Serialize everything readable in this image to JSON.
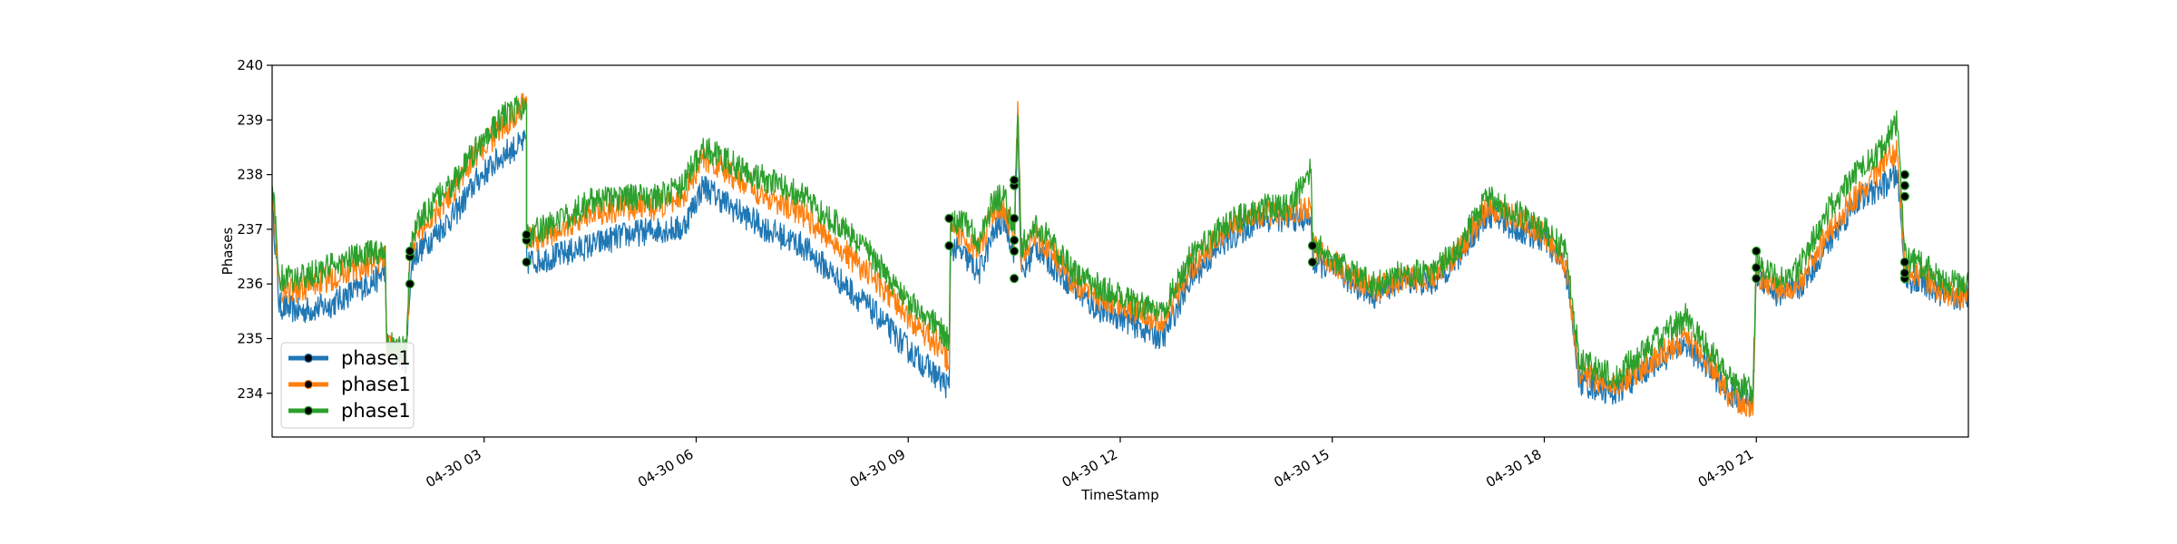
{
  "chart_data": {
    "type": "line",
    "title": "",
    "xlabel": "TimeStamp",
    "ylabel": "Phases",
    "ylim": [
      233.2,
      240.0
    ],
    "xlim_hours": [
      0.0,
      24.0
    ],
    "x_ticks": [
      {
        "hour": 3,
        "label": "04-30 03"
      },
      {
        "hour": 6,
        "label": "04-30 06"
      },
      {
        "hour": 9,
        "label": "04-30 09"
      },
      {
        "hour": 12,
        "label": "04-30 12"
      },
      {
        "hour": 15,
        "label": "04-30 15"
      },
      {
        "hour": 18,
        "label": "04-30 18"
      },
      {
        "hour": 21,
        "label": "04-30 21"
      }
    ],
    "y_ticks": [
      234,
      235,
      236,
      237,
      238,
      239,
      240
    ],
    "legend_position": "lower-left",
    "grid": false,
    "series": [
      {
        "name": "phase1",
        "color": "#1f77b4",
        "points": [
          [
            0,
            237.6
          ],
          [
            0.1,
            235.6
          ],
          [
            0.4,
            235.5
          ],
          [
            0.8,
            235.6
          ],
          [
            1.2,
            235.9
          ],
          [
            1.5,
            236.1
          ],
          [
            1.6,
            236.3
          ],
          [
            1.62,
            234.9
          ],
          [
            1.9,
            234.6
          ],
          [
            1.95,
            236.0
          ],
          [
            2.0,
            236.5
          ],
          [
            2.3,
            236.9
          ],
          [
            2.6,
            237.3
          ],
          [
            2.9,
            237.9
          ],
          [
            3.3,
            238.4
          ],
          [
            3.6,
            238.6
          ],
          [
            3.6,
            236.4
          ],
          [
            4.0,
            236.5
          ],
          [
            4.5,
            236.7
          ],
          [
            5.0,
            236.9
          ],
          [
            5.5,
            237.0
          ],
          [
            5.8,
            237.0
          ],
          [
            6.1,
            237.8
          ],
          [
            6.5,
            237.4
          ],
          [
            7.0,
            237.0
          ],
          [
            7.5,
            236.7
          ],
          [
            8.0,
            236.1
          ],
          [
            8.5,
            235.5
          ],
          [
            9.0,
            234.8
          ],
          [
            9.5,
            234.2
          ],
          [
            9.58,
            234.1
          ],
          [
            9.6,
            236.7
          ],
          [
            9.8,
            236.5
          ],
          [
            10.0,
            236.2
          ],
          [
            10.2,
            236.9
          ],
          [
            10.35,
            237.2
          ],
          [
            10.5,
            236.6
          ],
          [
            10.55,
            239.0
          ],
          [
            10.6,
            236.1
          ],
          [
            10.8,
            236.7
          ],
          [
            11.0,
            236.4
          ],
          [
            11.3,
            236.0
          ],
          [
            11.6,
            235.6
          ],
          [
            12.0,
            235.4
          ],
          [
            12.3,
            235.2
          ],
          [
            12.6,
            235.0
          ],
          [
            13.0,
            236.1
          ],
          [
            13.5,
            236.8
          ],
          [
            14.0,
            237.2
          ],
          [
            14.4,
            237.2
          ],
          [
            14.7,
            237.2
          ],
          [
            14.72,
            236.4
          ],
          [
            15.0,
            236.3
          ],
          [
            15.3,
            236.0
          ],
          [
            15.6,
            235.8
          ],
          [
            16.0,
            236.1
          ],
          [
            16.4,
            236.0
          ],
          [
            16.8,
            236.5
          ],
          [
            17.2,
            237.3
          ],
          [
            17.6,
            237.0
          ],
          [
            18.0,
            236.8
          ],
          [
            18.3,
            236.3
          ],
          [
            18.5,
            234.2
          ],
          [
            19.0,
            234.0
          ],
          [
            19.5,
            234.5
          ],
          [
            20.0,
            234.9
          ],
          [
            20.3,
            234.5
          ],
          [
            20.6,
            234.0
          ],
          [
            20.95,
            233.8
          ],
          [
            21.0,
            236.2
          ],
          [
            21.3,
            235.8
          ],
          [
            21.6,
            235.9
          ],
          [
            22.0,
            236.7
          ],
          [
            22.4,
            237.5
          ],
          [
            22.8,
            237.8
          ],
          [
            23.0,
            238.0
          ],
          [
            23.1,
            236.1
          ],
          [
            23.4,
            236.0
          ],
          [
            23.7,
            235.7
          ],
          [
            24.0,
            235.8
          ]
        ]
      },
      {
        "name": "phase1",
        "color": "#ff7f0e",
        "points": [
          [
            0,
            237.9
          ],
          [
            0.1,
            235.9
          ],
          [
            0.4,
            235.9
          ],
          [
            0.8,
            236.1
          ],
          [
            1.2,
            236.3
          ],
          [
            1.5,
            236.4
          ],
          [
            1.6,
            236.5
          ],
          [
            1.62,
            234.9
          ],
          [
            1.9,
            234.7
          ],
          [
            1.95,
            236.5
          ],
          [
            2.0,
            236.8
          ],
          [
            2.3,
            237.3
          ],
          [
            2.6,
            237.8
          ],
          [
            2.9,
            238.4
          ],
          [
            3.3,
            238.9
          ],
          [
            3.6,
            239.4
          ],
          [
            3.6,
            236.8
          ],
          [
            4.0,
            236.9
          ],
          [
            4.5,
            237.3
          ],
          [
            5.0,
            237.4
          ],
          [
            5.5,
            237.4
          ],
          [
            5.8,
            237.6
          ],
          [
            6.1,
            238.3
          ],
          [
            6.5,
            238.0
          ],
          [
            7.0,
            237.6
          ],
          [
            7.5,
            237.3
          ],
          [
            8.0,
            236.7
          ],
          [
            8.5,
            236.1
          ],
          [
            9.0,
            235.4
          ],
          [
            9.5,
            234.8
          ],
          [
            9.58,
            234.5
          ],
          [
            9.6,
            237.0
          ],
          [
            9.8,
            236.9
          ],
          [
            10.0,
            236.6
          ],
          [
            10.2,
            237.3
          ],
          [
            10.35,
            237.4
          ],
          [
            10.5,
            236.9
          ],
          [
            10.55,
            239.3
          ],
          [
            10.6,
            236.5
          ],
          [
            10.8,
            236.9
          ],
          [
            11.0,
            236.6
          ],
          [
            11.3,
            236.1
          ],
          [
            11.6,
            235.8
          ],
          [
            12.0,
            235.6
          ],
          [
            12.3,
            235.5
          ],
          [
            12.6,
            235.3
          ],
          [
            13.0,
            236.3
          ],
          [
            13.5,
            237.0
          ],
          [
            14.0,
            237.3
          ],
          [
            14.4,
            237.3
          ],
          [
            14.7,
            237.4
          ],
          [
            14.72,
            236.7
          ],
          [
            15.0,
            236.4
          ],
          [
            15.3,
            236.1
          ],
          [
            15.6,
            235.9
          ],
          [
            16.0,
            236.1
          ],
          [
            16.4,
            236.1
          ],
          [
            16.8,
            236.6
          ],
          [
            17.2,
            237.4
          ],
          [
            17.6,
            237.2
          ],
          [
            18.0,
            236.9
          ],
          [
            18.3,
            236.4
          ],
          [
            18.5,
            234.4
          ],
          [
            19.0,
            234.1
          ],
          [
            19.5,
            234.6
          ],
          [
            20.0,
            235.0
          ],
          [
            20.3,
            234.6
          ],
          [
            20.6,
            234.0
          ],
          [
            20.95,
            233.7
          ],
          [
            21.0,
            236.2
          ],
          [
            21.3,
            235.9
          ],
          [
            21.6,
            236.0
          ],
          [
            22.0,
            236.9
          ],
          [
            22.4,
            237.6
          ],
          [
            22.8,
            238.2
          ],
          [
            23.0,
            238.5
          ],
          [
            23.1,
            236.3
          ],
          [
            23.4,
            236.1
          ],
          [
            23.7,
            235.8
          ],
          [
            24.0,
            235.8
          ]
        ]
      },
      {
        "name": "phase1",
        "color": "#2ca02c",
        "points": [
          [
            0,
            238.0
          ],
          [
            0.1,
            236.1
          ],
          [
            0.4,
            236.1
          ],
          [
            0.8,
            236.3
          ],
          [
            1.2,
            236.5
          ],
          [
            1.5,
            236.6
          ],
          [
            1.6,
            236.7
          ],
          [
            1.62,
            234.9
          ],
          [
            1.9,
            234.8
          ],
          [
            1.95,
            236.6
          ],
          [
            2.0,
            237.0
          ],
          [
            2.3,
            237.5
          ],
          [
            2.6,
            237.9
          ],
          [
            2.9,
            238.5
          ],
          [
            3.3,
            239.1
          ],
          [
            3.6,
            239.3
          ],
          [
            3.6,
            236.9
          ],
          [
            4.0,
            237.1
          ],
          [
            4.5,
            237.5
          ],
          [
            5.0,
            237.6
          ],
          [
            5.5,
            237.6
          ],
          [
            5.8,
            237.8
          ],
          [
            6.1,
            238.5
          ],
          [
            6.5,
            238.2
          ],
          [
            7.0,
            237.9
          ],
          [
            7.5,
            237.6
          ],
          [
            8.0,
            237.1
          ],
          [
            8.5,
            236.5
          ],
          [
            9.0,
            235.7
          ],
          [
            9.5,
            235.1
          ],
          [
            9.58,
            234.9
          ],
          [
            9.6,
            237.2
          ],
          [
            9.8,
            237.1
          ],
          [
            10.0,
            236.8
          ],
          [
            10.2,
            237.5
          ],
          [
            10.35,
            237.6
          ],
          [
            10.5,
            237.0
          ],
          [
            10.55,
            239.1
          ],
          [
            10.6,
            236.7
          ],
          [
            10.8,
            237.1
          ],
          [
            11.0,
            236.8
          ],
          [
            11.3,
            236.3
          ],
          [
            11.6,
            236.0
          ],
          [
            12.0,
            235.8
          ],
          [
            12.3,
            235.6
          ],
          [
            12.6,
            235.5
          ],
          [
            13.0,
            236.5
          ],
          [
            13.5,
            237.1
          ],
          [
            14.0,
            237.4
          ],
          [
            14.4,
            237.4
          ],
          [
            14.7,
            238.1
          ],
          [
            14.72,
            236.8
          ],
          [
            15.0,
            236.5
          ],
          [
            15.3,
            236.2
          ],
          [
            15.6,
            236.0
          ],
          [
            16.0,
            236.2
          ],
          [
            16.4,
            236.2
          ],
          [
            16.8,
            236.7
          ],
          [
            17.2,
            237.6
          ],
          [
            17.6,
            237.3
          ],
          [
            18.0,
            237.0
          ],
          [
            18.3,
            236.6
          ],
          [
            18.5,
            234.6
          ],
          [
            19.0,
            234.3
          ],
          [
            19.5,
            234.9
          ],
          [
            20.0,
            235.4
          ],
          [
            20.3,
            234.9
          ],
          [
            20.6,
            234.3
          ],
          [
            20.95,
            234.0
          ],
          [
            21.0,
            236.4
          ],
          [
            21.3,
            236.1
          ],
          [
            21.6,
            236.3
          ],
          [
            22.0,
            237.3
          ],
          [
            22.4,
            238.0
          ],
          [
            22.8,
            238.5
          ],
          [
            23.0,
            239.0
          ],
          [
            23.1,
            236.5
          ],
          [
            23.4,
            236.3
          ],
          [
            23.7,
            236.0
          ],
          [
            24.0,
            236.0
          ]
        ]
      }
    ],
    "markers": {
      "color": "#000000",
      "points": [
        [
          1.95,
          236.0
        ],
        [
          1.95,
          236.5
        ],
        [
          1.95,
          236.6
        ],
        [
          3.6,
          236.4
        ],
        [
          3.6,
          236.8
        ],
        [
          3.6,
          236.9
        ],
        [
          9.58,
          236.7
        ],
        [
          9.58,
          237.2
        ],
        [
          10.5,
          236.1
        ],
        [
          10.5,
          236.6
        ],
        [
          10.5,
          236.8
        ],
        [
          10.5,
          237.2
        ],
        [
          10.5,
          237.8
        ],
        [
          10.5,
          237.9
        ],
        [
          14.72,
          236.4
        ],
        [
          14.72,
          236.7
        ],
        [
          21.0,
          236.1
        ],
        [
          21.0,
          236.3
        ],
        [
          21.0,
          236.6
        ],
        [
          23.1,
          236.1
        ],
        [
          23.1,
          236.2
        ],
        [
          23.1,
          236.4
        ],
        [
          23.1,
          237.6
        ],
        [
          23.1,
          237.8
        ],
        [
          23.1,
          238.0
        ]
      ]
    }
  }
}
